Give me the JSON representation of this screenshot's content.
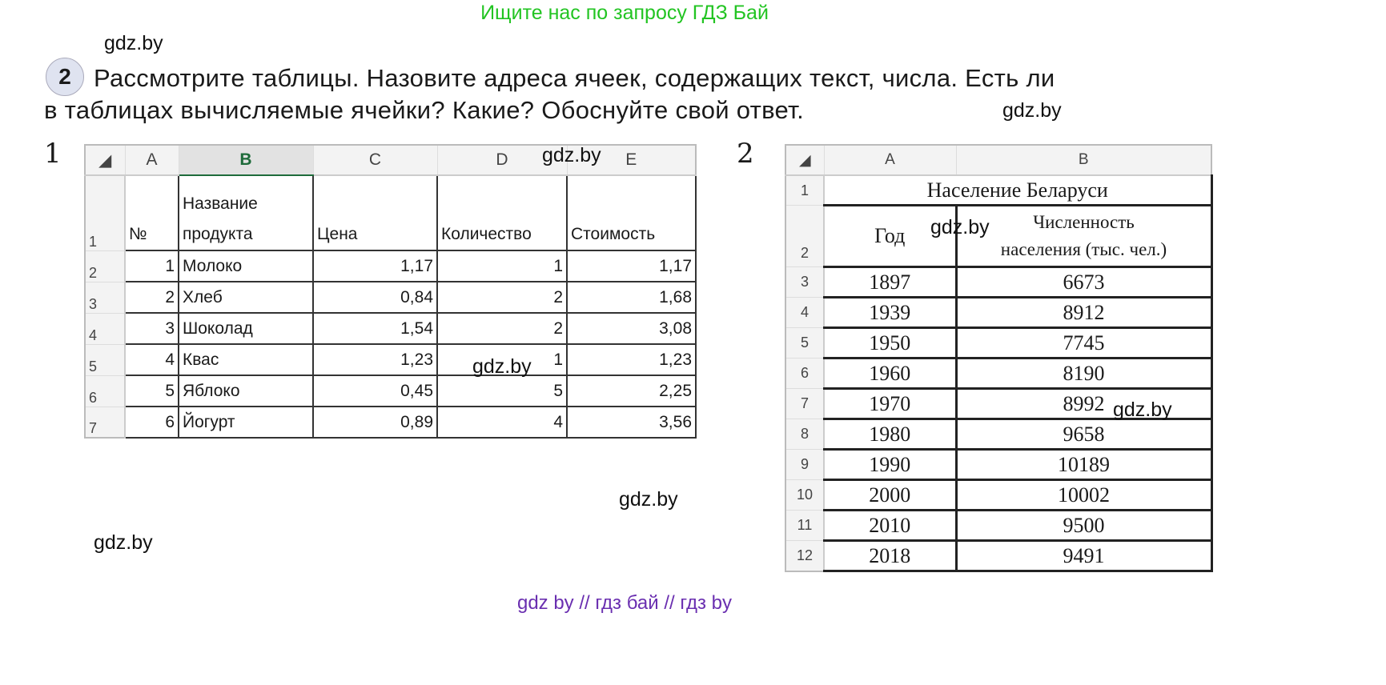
{
  "banner": "Ищите нас по запросу ГДЗ Бай",
  "watermark": "gdz.by",
  "task": {
    "number": "2",
    "line1": "Рассмотрите таблицы. Назовите адреса ячеек, содержащих текст, числа. Есть ли",
    "line2": "в таблицах вычисляемые ячейки? Какие? Обоснуйте свой ответ."
  },
  "table1": {
    "label": "1",
    "columns": [
      "A",
      "B",
      "C",
      "D",
      "E"
    ],
    "selected_column": "B",
    "header": {
      "row": "1",
      "cells": [
        "№",
        "Название\nпродукта",
        "Цена",
        "Количество",
        "Стоимость"
      ]
    },
    "rows": [
      {
        "row": "2",
        "cells": [
          "1",
          "Молоко",
          "1,17",
          "1",
          "1,17"
        ]
      },
      {
        "row": "3",
        "cells": [
          "2",
          "Хлеб",
          "0,84",
          "2",
          "1,68"
        ]
      },
      {
        "row": "4",
        "cells": [
          "3",
          "Шоколад",
          "1,54",
          "2",
          "3,08"
        ]
      },
      {
        "row": "5",
        "cells": [
          "4",
          "Квас",
          "1,23",
          "1",
          "1,23"
        ]
      },
      {
        "row": "6",
        "cells": [
          "5",
          "Яблоко",
          "0,45",
          "5",
          "2,25"
        ]
      },
      {
        "row": "7",
        "cells": [
          "6",
          "Йогурт",
          "0,89",
          "4",
          "3,56"
        ]
      }
    ]
  },
  "table2": {
    "label": "2",
    "columns": [
      "A",
      "B"
    ],
    "title": {
      "row": "1",
      "text": "Население Беларуси"
    },
    "header": {
      "row": "2",
      "cells": [
        "Год",
        "Численность\nнаселения (тыс. чел.)"
      ]
    },
    "rows": [
      {
        "row": "3",
        "cells": [
          "1897",
          "6673"
        ]
      },
      {
        "row": "4",
        "cells": [
          "1939",
          "8912"
        ]
      },
      {
        "row": "5",
        "cells": [
          "1950",
          "7745"
        ]
      },
      {
        "row": "6",
        "cells": [
          "1960",
          "8190"
        ]
      },
      {
        "row": "7",
        "cells": [
          "1970",
          "8992"
        ]
      },
      {
        "row": "8",
        "cells": [
          "1980",
          "9658"
        ]
      },
      {
        "row": "9",
        "cells": [
          "1990",
          "10189"
        ]
      },
      {
        "row": "10",
        "cells": [
          "2000",
          "10002"
        ]
      },
      {
        "row": "11",
        "cells": [
          "2010",
          "9500"
        ]
      },
      {
        "row": "12",
        "cells": [
          "2018",
          "9491"
        ]
      }
    ]
  },
  "footer": "gdz by  //  гдз бай  //  гдз by",
  "colors": {
    "banner": "#22c422",
    "footer": "#6a2fb0",
    "selected_column": "#1e6b3a"
  }
}
